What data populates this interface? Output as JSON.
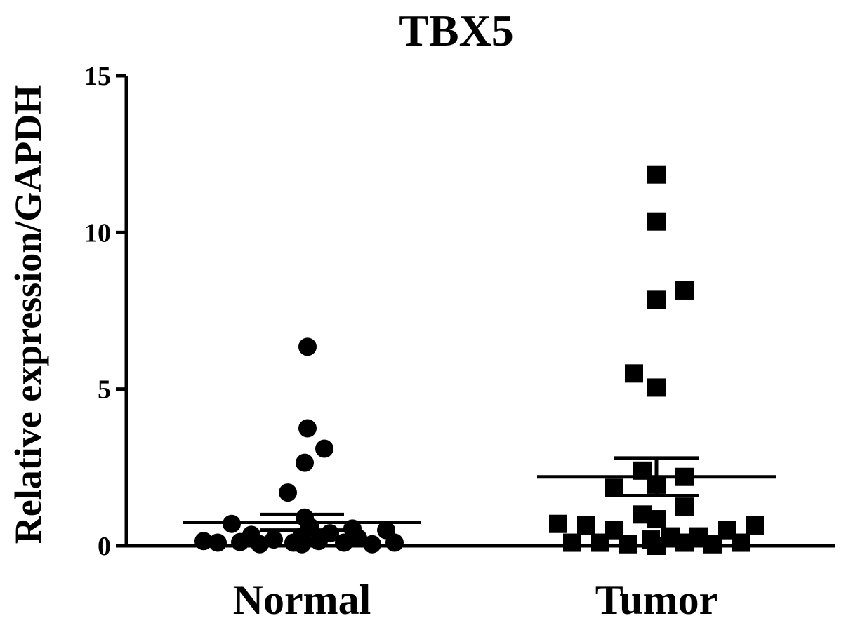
{
  "chart_data": {
    "type": "scatter",
    "title": "TBX5",
    "ylabel": "Relative expression/GAPDH",
    "xlabel": "",
    "categories": [
      "Normal",
      "Tumor"
    ],
    "ylim": [
      0,
      15
    ],
    "yticks": [
      0,
      5,
      10,
      15
    ],
    "grid": false,
    "series": [
      {
        "category": "Normal",
        "marker": "circle",
        "mean": 0.75,
        "sem_upper": 1.0,
        "sem_lower": 0.5,
        "points": [
          {
            "x": -0.35,
            "y": 0.15
          },
          {
            "x": -0.3,
            "y": 0.1
          },
          {
            "x": -0.25,
            "y": 0.7
          },
          {
            "x": -0.22,
            "y": 0.12
          },
          {
            "x": -0.15,
            "y": 0.05
          },
          {
            "x": -0.1,
            "y": 0.2
          },
          {
            "x": -0.05,
            "y": 1.7
          },
          {
            "x": -0.03,
            "y": 0.1
          },
          {
            "x": 0.0,
            "y": 0.3
          },
          {
            "x": 0.02,
            "y": 6.35
          },
          {
            "x": 0.02,
            "y": 3.75
          },
          {
            "x": 0.01,
            "y": 2.65
          },
          {
            "x": 0.01,
            "y": 0.9
          },
          {
            "x": 0.0,
            "y": 0.05
          },
          {
            "x": 0.03,
            "y": 0.6
          },
          {
            "x": 0.08,
            "y": 3.1
          },
          {
            "x": 0.06,
            "y": 0.15
          },
          {
            "x": 0.1,
            "y": 0.4
          },
          {
            "x": 0.15,
            "y": 0.1
          },
          {
            "x": 0.2,
            "y": 0.25
          },
          {
            "x": 0.25,
            "y": 0.05
          },
          {
            "x": 0.3,
            "y": 0.5
          },
          {
            "x": 0.33,
            "y": 0.1
          },
          {
            "x": -0.18,
            "y": 0.35
          },
          {
            "x": 0.18,
            "y": 0.55
          }
        ]
      },
      {
        "category": "Tumor",
        "marker": "square",
        "mean": 2.2,
        "sem_upper": 2.8,
        "sem_lower": 1.6,
        "points": [
          {
            "x": -0.35,
            "y": 0.7
          },
          {
            "x": -0.3,
            "y": 0.1
          },
          {
            "x": -0.25,
            "y": 0.65
          },
          {
            "x": -0.2,
            "y": 0.1
          },
          {
            "x": -0.15,
            "y": 0.5
          },
          {
            "x": -0.15,
            "y": 1.85
          },
          {
            "x": -0.1,
            "y": 0.05
          },
          {
            "x": -0.08,
            "y": 5.5
          },
          {
            "x": -0.05,
            "y": 1.0
          },
          {
            "x": -0.05,
            "y": 2.4
          },
          {
            "x": -0.02,
            "y": 0.2
          },
          {
            "x": 0.0,
            "y": 11.85
          },
          {
            "x": 0.0,
            "y": 10.35
          },
          {
            "x": 0.0,
            "y": 7.85
          },
          {
            "x": 0.0,
            "y": 5.05
          },
          {
            "x": 0.0,
            "y": 1.95
          },
          {
            "x": 0.0,
            "y": 0.85
          },
          {
            "x": 0.0,
            "y": 0.0
          },
          {
            "x": 0.05,
            "y": 0.3
          },
          {
            "x": 0.1,
            "y": 0.1
          },
          {
            "x": 0.1,
            "y": 8.15
          },
          {
            "x": 0.1,
            "y": 2.2
          },
          {
            "x": 0.1,
            "y": 1.25
          },
          {
            "x": 0.15,
            "y": 0.3
          },
          {
            "x": 0.2,
            "y": 0.05
          },
          {
            "x": 0.25,
            "y": 0.5
          },
          {
            "x": 0.3,
            "y": 0.1
          },
          {
            "x": 0.35,
            "y": 0.65
          }
        ]
      }
    ]
  }
}
